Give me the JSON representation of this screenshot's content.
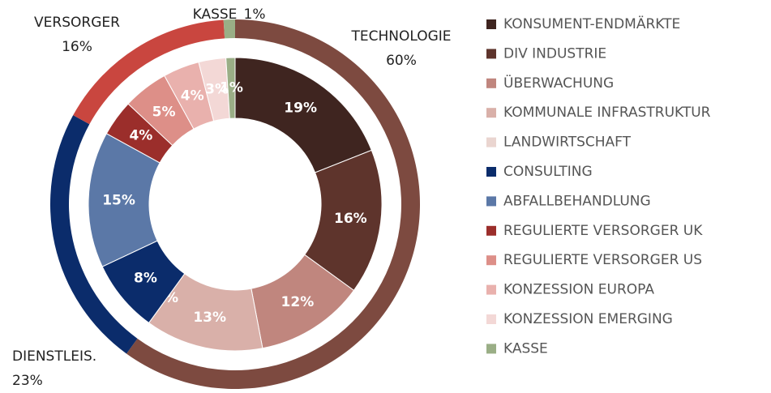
{
  "chart_data": {
    "type": "nested-donut",
    "rings": [
      {
        "categories": [
          "TECHNOLOGIE",
          "DIENSTLEIS.",
          "VERSORGER",
          "KASSE"
        ],
        "values": [
          60,
          23,
          16,
          1
        ],
        "value_labels": [
          "60%",
          "23%",
          "16%",
          "1%"
        ],
        "colors": [
          "#7d4a40",
          "#0b2c6b",
          "#c9463f",
          "#9aae86"
        ]
      },
      {
        "categories": [
          "KONSUMENT-ENDMÄRKTE",
          "DIV INDUSTRIE",
          "ÜBERWACHUNG",
          "KOMMUNALE INFRASTRUKTUR",
          "LANDWIRTSCHAFT",
          "CONSULTING",
          "ABFALLBEHANDLUNG",
          "REGULIERTE VERSORGER UK",
          "REGULIERTE VERSORGER US",
          "KONZESSION EUROPA",
          "KONZESSION EMERGING",
          "KASSE"
        ],
        "values": [
          19,
          16,
          12,
          13,
          0,
          8,
          15,
          4,
          5,
          4,
          3,
          1
        ],
        "value_labels": [
          "19%",
          "16%",
          "12%",
          "13%",
          "0%",
          "8%",
          "15%",
          "4%",
          "5%",
          "4%",
          "3%",
          "1%"
        ],
        "colors": [
          "#3f2520",
          "#5e342c",
          "#c0867e",
          "#d9b0a9",
          "#ead5d0",
          "#0b2c6b",
          "#5b78a7",
          "#9b2e2b",
          "#dd8f88",
          "#e9b1ad",
          "#f3d8d6",
          "#9aae86"
        ]
      }
    ]
  }
}
